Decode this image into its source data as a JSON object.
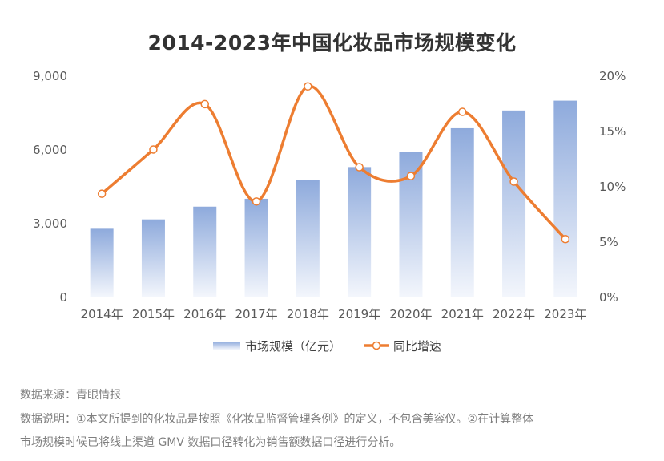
{
  "chart_data": {
    "type": "bar+line",
    "title": "2014-2023年中国化妆品市场规模变化",
    "categories": [
      "2014年",
      "2015年",
      "2016年",
      "2017年",
      "2018年",
      "2019年",
      "2020年",
      "2021年",
      "2022年",
      "2023年"
    ],
    "series": [
      {
        "name": "市场规模（亿元）",
        "type": "bar",
        "axis": "left",
        "values": [
          2760,
          3140,
          3660,
          3980,
          4740,
          5270,
          5880,
          6850,
          7570,
          7970
        ]
      },
      {
        "name": "同比增速",
        "type": "line",
        "axis": "right",
        "values": [
          9.3,
          13.3,
          17.4,
          8.6,
          19.0,
          11.7,
          10.9,
          16.7,
          10.4,
          5.2
        ]
      }
    ],
    "y_left": {
      "min": 0,
      "max": 9000,
      "ticks": [
        0,
        3000,
        6000,
        9000
      ],
      "tick_labels": [
        "0",
        "3,000",
        "6,000",
        "9,000"
      ]
    },
    "y_right": {
      "min": 0,
      "max": 20,
      "ticks": [
        0,
        5,
        10,
        15,
        20
      ],
      "tick_labels": [
        "0%",
        "5%",
        "10%",
        "15%",
        "20%"
      ]
    },
    "legend_position": "bottom-center",
    "colors": {
      "bar_top": "#8eaadc",
      "bar_bottom": "#f3f6fc",
      "line": "#ed7d31",
      "marker_fill": "#ffffff"
    }
  },
  "footnotes": {
    "source": "数据来源：青眼情报",
    "note_line1": "数据说明：①本文所提到的化妆品是按照《化妆品监督管理条例》的定义，不包含美容仪。②在计算整体",
    "note_line2": "市场规模时候已将线上渠道 GMV 数据口径转化为销售额数据口径进行分析。"
  }
}
